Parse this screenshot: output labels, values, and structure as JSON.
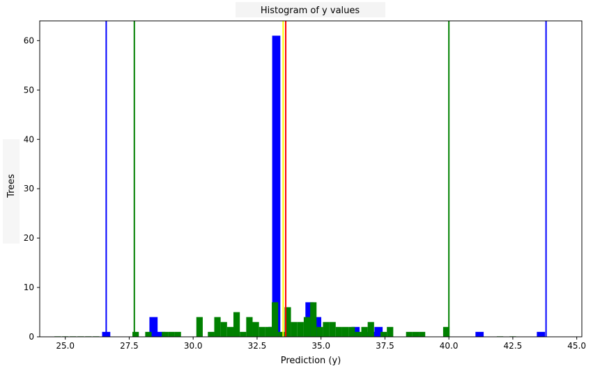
{
  "chart_data": {
    "type": "bar",
    "title": "Histogram of y values",
    "xlabel": "Prediction (y)",
    "ylabel": "Trees",
    "xlim": [
      24.0,
      45.2
    ],
    "ylim": [
      0,
      64
    ],
    "xticks": [
      "25.0",
      "27.5",
      "30.0",
      "32.5",
      "35.0",
      "37.5",
      "40.0",
      "42.5",
      "45.0"
    ],
    "xtick_values": [
      25.0,
      27.5,
      30.0,
      32.5,
      35.0,
      37.5,
      40.0,
      42.5,
      45.0
    ],
    "yticks": [
      "0",
      "10",
      "20",
      "30",
      "40",
      "50",
      "60"
    ],
    "ytick_values": [
      0,
      10,
      20,
      30,
      40,
      50,
      60
    ],
    "grid": false,
    "series": [
      {
        "color": "#0000ff",
        "bin_width": 0.32,
        "bins": [
          [
            26.6,
            1
          ],
          [
            28.45,
            4
          ],
          [
            28.75,
            1
          ],
          [
            33.1,
            2
          ],
          [
            33.25,
            61
          ],
          [
            34.55,
            7
          ],
          [
            34.85,
            4
          ],
          [
            36.35,
            2
          ],
          [
            36.95,
            1
          ],
          [
            37.25,
            2
          ],
          [
            41.2,
            1
          ],
          [
            43.6,
            1
          ]
        ]
      },
      {
        "color": "#008000",
        "bin_width": 0.25,
        "bins": [
          [
            24.7,
            0.1
          ],
          [
            25.0,
            0.1
          ],
          [
            25.3,
            0.1
          ],
          [
            25.6,
            0.1
          ],
          [
            25.9,
            0.1
          ],
          [
            26.2,
            0.1
          ],
          [
            27.75,
            1
          ],
          [
            28.25,
            1
          ],
          [
            28.9,
            1
          ],
          [
            29.15,
            1
          ],
          [
            29.4,
            1
          ],
          [
            30.25,
            4
          ],
          [
            30.7,
            1
          ],
          [
            30.95,
            4
          ],
          [
            31.2,
            3
          ],
          [
            31.45,
            2
          ],
          [
            31.7,
            5
          ],
          [
            31.95,
            1
          ],
          [
            32.2,
            4
          ],
          [
            32.45,
            3
          ],
          [
            32.7,
            2
          ],
          [
            32.95,
            2
          ],
          [
            33.2,
            7
          ],
          [
            33.45,
            1
          ],
          [
            33.7,
            6
          ],
          [
            33.95,
            3
          ],
          [
            34.2,
            3
          ],
          [
            34.45,
            4
          ],
          [
            34.7,
            7
          ],
          [
            34.95,
            2
          ],
          [
            35.2,
            3
          ],
          [
            35.45,
            3
          ],
          [
            35.7,
            2
          ],
          [
            35.95,
            2
          ],
          [
            36.2,
            2
          ],
          [
            36.45,
            1
          ],
          [
            36.7,
            2
          ],
          [
            36.95,
            3
          ],
          [
            37.45,
            1
          ],
          [
            37.7,
            2
          ],
          [
            38.45,
            1
          ],
          [
            38.7,
            1
          ],
          [
            38.95,
            1
          ],
          [
            39.9,
            2
          ],
          [
            42.0,
            0.1
          ],
          [
            42.5,
            0.1
          ]
        ]
      }
    ],
    "vlines": [
      {
        "x": 26.6,
        "color": "#0000ff"
      },
      {
        "x": 43.8,
        "color": "#0000ff"
      },
      {
        "x": 27.7,
        "color": "#008000"
      },
      {
        "x": 40.0,
        "color": "#008000"
      },
      {
        "x": 33.52,
        "color": "#ffff00"
      },
      {
        "x": 33.62,
        "color": "#ff0000"
      }
    ]
  }
}
